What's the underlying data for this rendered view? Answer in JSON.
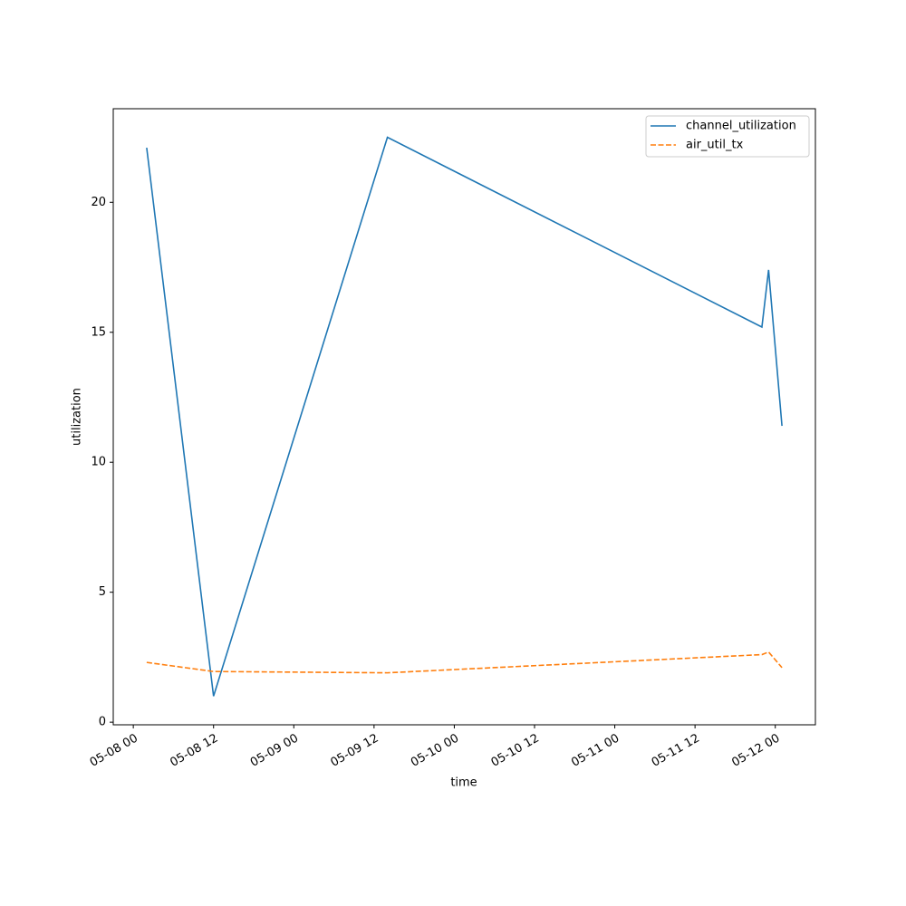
{
  "chart_data": {
    "type": "line",
    "x_label": "time",
    "y_label": "utilization",
    "x": [
      "05-08 02",
      "05-08 12",
      "05-09 14",
      "05-11 22",
      "05-11 23",
      "05-12 01"
    ],
    "series": [
      {
        "name": "channel_utilization",
        "color": "#1f77b4",
        "dash": "solid",
        "values": [
          22.1,
          1.0,
          22.5,
          15.2,
          17.4,
          11.4
        ]
      },
      {
        "name": "air_util_tx",
        "color": "#ff7f0e",
        "dash": "dashed",
        "values": [
          2.3,
          1.95,
          1.9,
          2.6,
          2.7,
          2.1
        ]
      }
    ],
    "xlim": [
      "05-07 21",
      "05-12 06"
    ],
    "xticks": [
      "05-08 00",
      "05-08 12",
      "05-09 00",
      "05-09 12",
      "05-10 00",
      "05-10 12",
      "05-11 00",
      "05-11 12",
      "05-12 00"
    ],
    "ylim": [
      -0.1,
      23.6
    ],
    "yticks": [
      0,
      5,
      10,
      15,
      20
    ],
    "grid": false,
    "legend": "upper-right"
  }
}
